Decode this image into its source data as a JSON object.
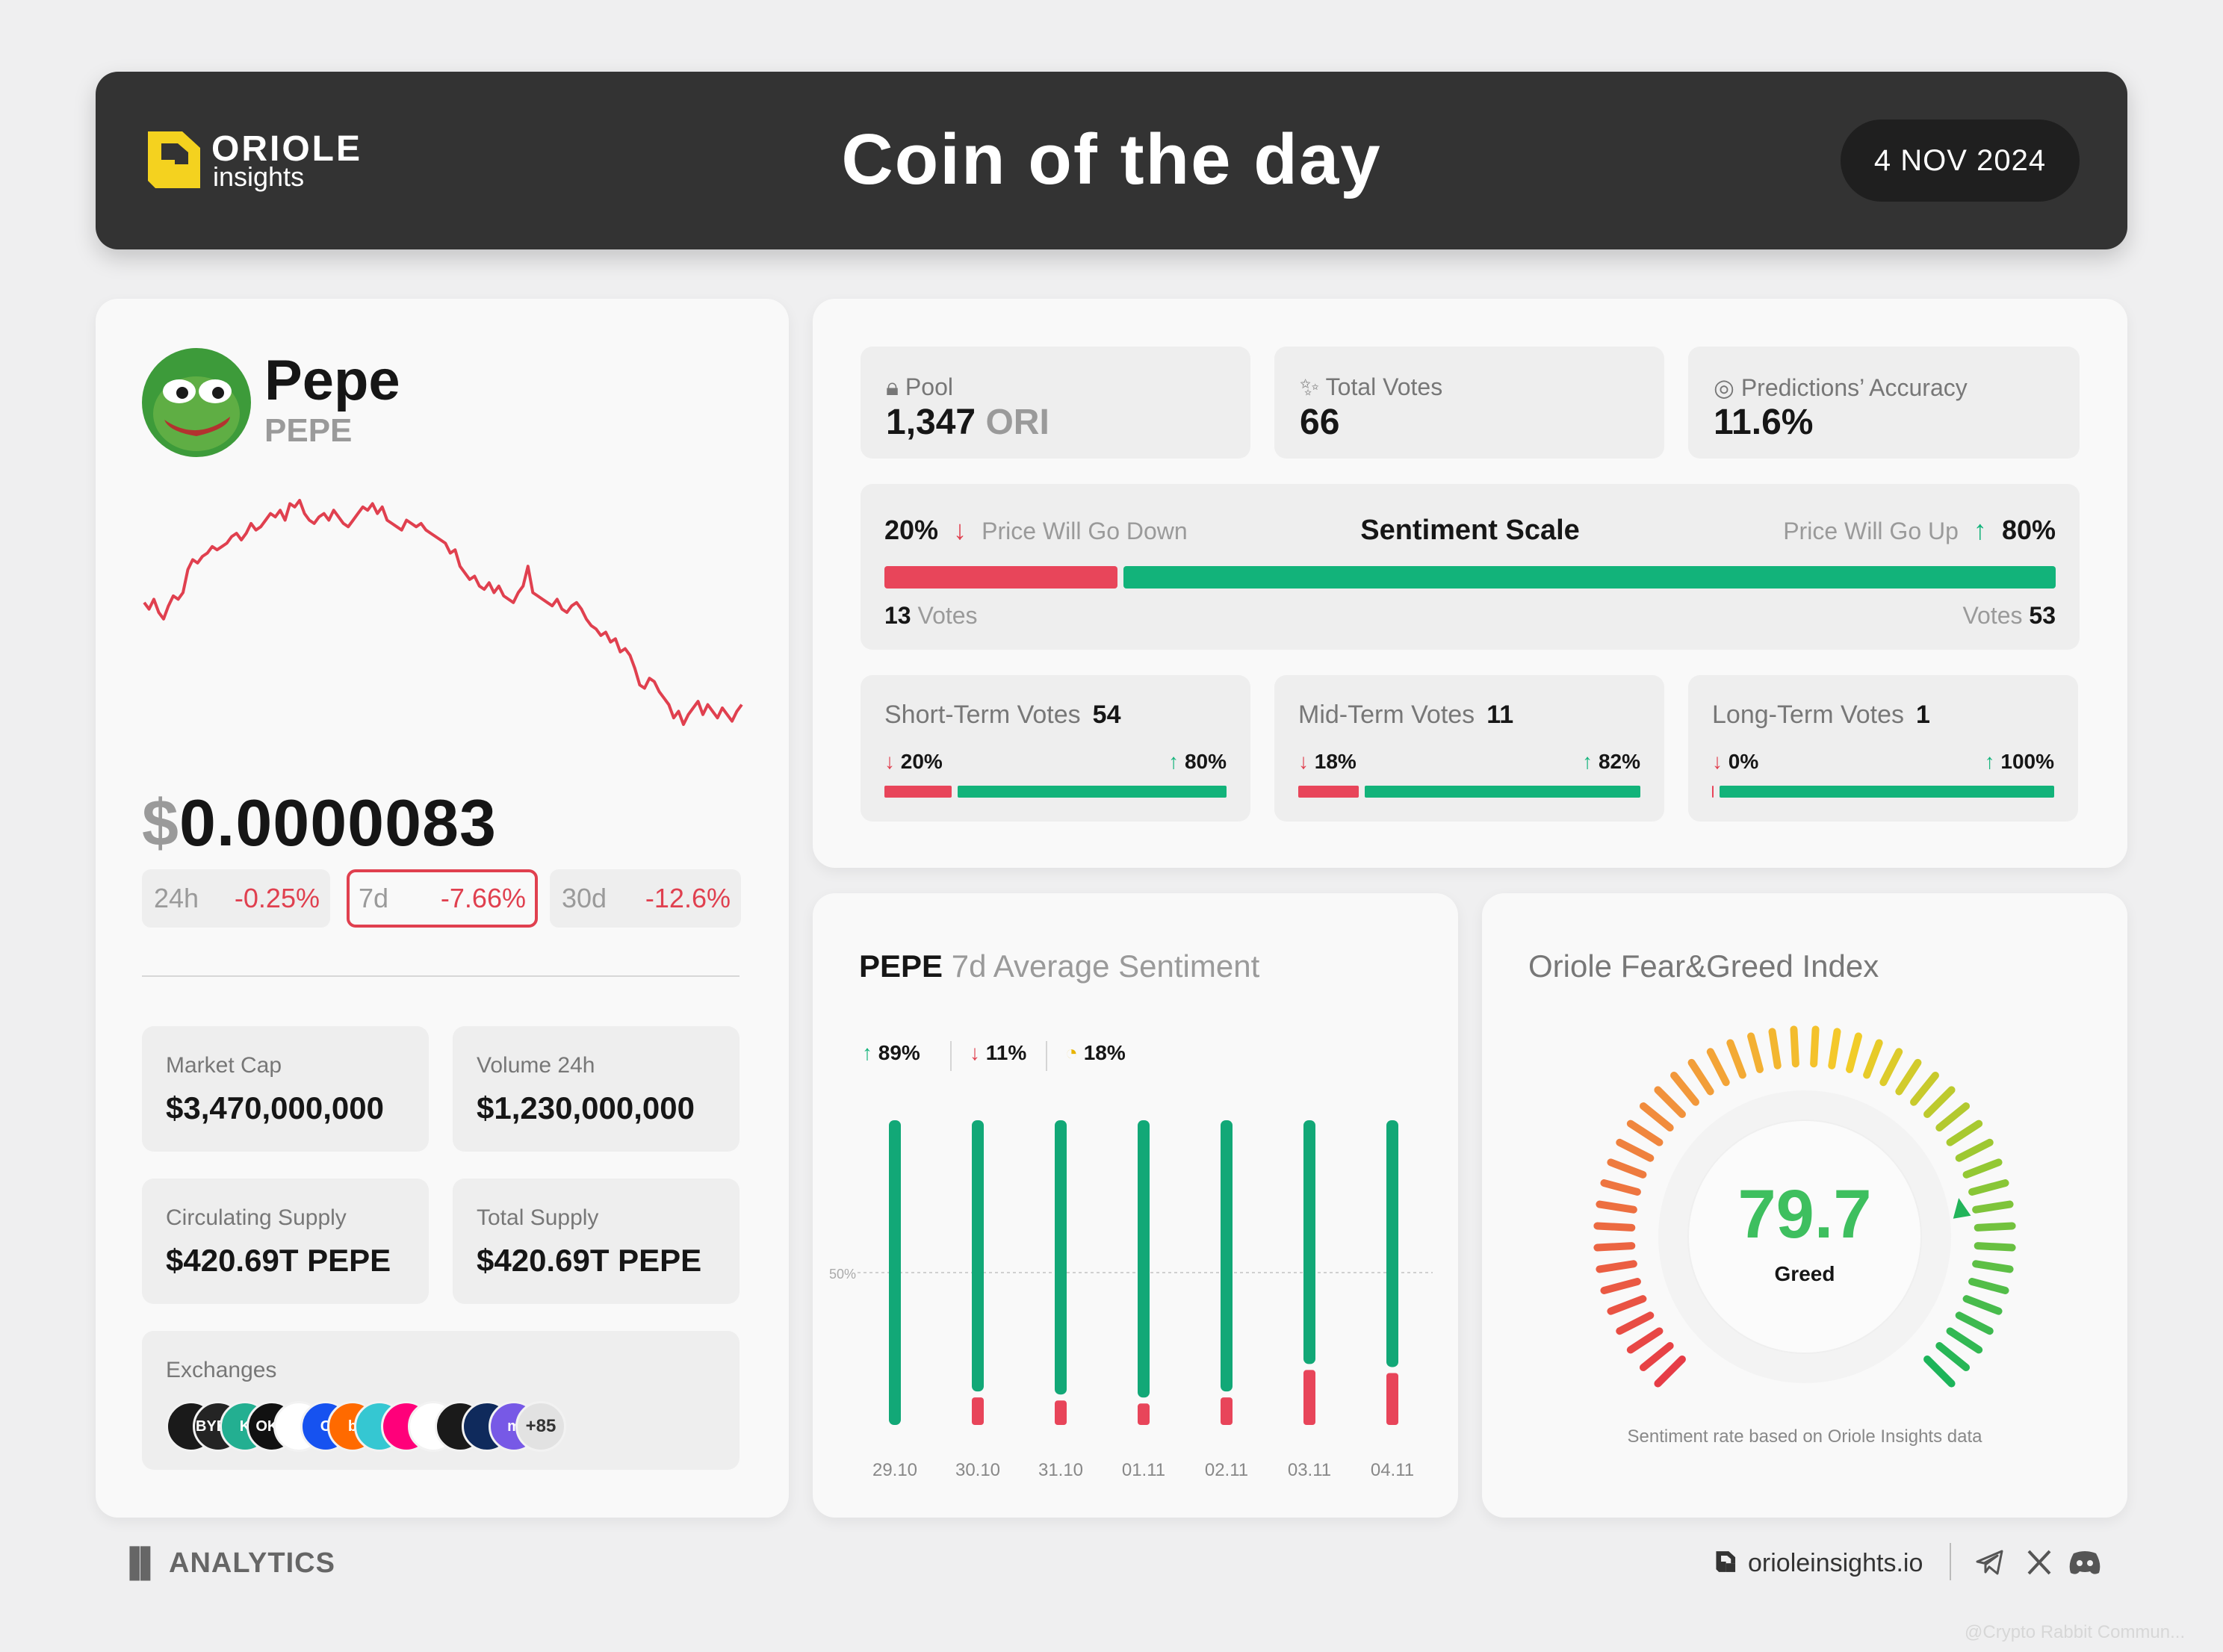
{
  "header": {
    "logo_name": "ORIOLE",
    "logo_sub": "insights",
    "title": "Coin of the day",
    "date": "4 NOV 2024"
  },
  "coin": {
    "name": "Pepe",
    "symbol": "PEPE",
    "price_currency": "$",
    "price_value": "0.0000083",
    "changes": [
      {
        "period": "24h",
        "value": "-0.25%",
        "active": false
      },
      {
        "period": "7d",
        "value": "-7.66%",
        "active": true
      },
      {
        "period": "30d",
        "value": "-12.6%",
        "active": false
      }
    ],
    "stats": {
      "market_cap_label": "Market Cap",
      "market_cap": "$3,470,000,000",
      "volume_label": "Volume 24h",
      "volume": "$1,230,000,000",
      "circ_label": "Circulating Supply",
      "circ": "$420.69T PEPE",
      "total_label": "Total Supply",
      "total": "$420.69T PEPE"
    },
    "exchanges_label": "Exchanges",
    "exchanges": [
      {
        "name": "Binance",
        "text": "",
        "color": "#1a1a1a"
      },
      {
        "name": "Bybit",
        "text": "BYBIT",
        "color": "#242424"
      },
      {
        "name": "KuCoin",
        "text": "K",
        "color": "#23af91"
      },
      {
        "name": "OKX",
        "text": "OKX",
        "color": "#111111"
      },
      {
        "name": "Upbit",
        "text": "",
        "color": "#ffffff"
      },
      {
        "name": "Coinbase",
        "text": "C",
        "color": "#1652f0"
      },
      {
        "name": "Bitget",
        "text": "b",
        "color": "#ff6a00"
      },
      {
        "name": "PancakeSwap",
        "text": "",
        "color": "#35c7d2"
      },
      {
        "name": "Uniswap",
        "text": "",
        "color": "#ff007a"
      },
      {
        "name": "Bitrue",
        "text": "",
        "color": "#ffffff"
      },
      {
        "name": "Bitstamp",
        "text": "",
        "color": "#1a1a1a"
      },
      {
        "name": "Crypto.com",
        "text": "",
        "color": "#0f2a5c"
      },
      {
        "name": "Mexc",
        "text": "m",
        "color": "#7759e6"
      }
    ],
    "exchanges_more": "+85",
    "chart_data": {
      "type": "line",
      "title": "",
      "period": "7d",
      "color": "#e0404f",
      "values": [
        55,
        53,
        56,
        52,
        50,
        54,
        57,
        56,
        58,
        65,
        68,
        67,
        69,
        70,
        72,
        71,
        72,
        73,
        75,
        76,
        74,
        76,
        79,
        77,
        78,
        80,
        82,
        81,
        83,
        80,
        85,
        84,
        86,
        82,
        80,
        79,
        81,
        82,
        80,
        83,
        81,
        79,
        78,
        80,
        82,
        84,
        83,
        85,
        82,
        84,
        80,
        79,
        78,
        77,
        80,
        79,
        78,
        79,
        77,
        76,
        75,
        74,
        73,
        70,
        71,
        66,
        64,
        62,
        63,
        60,
        59,
        61,
        58,
        60,
        57,
        56,
        55,
        58,
        60,
        66,
        58,
        57,
        56,
        55,
        54,
        56,
        53,
        52,
        54,
        55,
        53,
        50,
        48,
        47,
        45,
        46,
        43,
        44,
        40,
        41,
        39,
        35,
        30,
        29,
        32,
        31,
        28,
        26,
        24,
        20,
        22,
        18,
        21,
        23,
        25,
        21,
        24,
        22,
        20,
        23,
        21,
        19,
        22,
        24
      ]
    }
  },
  "stats_top": {
    "pool_label": "Pool",
    "pool_value": "1,347",
    "pool_unit": "ORI",
    "votes_label": "Total Votes",
    "votes_value": "66",
    "accuracy_label": "Predictions’ Accuracy",
    "accuracy_value": "11.6%"
  },
  "sentiment": {
    "title": "Sentiment Scale",
    "down_pct": "20%",
    "down_label": "Price Will Go Down",
    "up_pct": "80%",
    "up_label": "Price Will Go Up",
    "down_votes": "13",
    "up_votes": "53",
    "votes_word": "Votes",
    "down_fraction": 0.2,
    "colors": {
      "down": "#e8455a",
      "up": "#12b37a"
    }
  },
  "terms": [
    {
      "label": "Short-Term Votes",
      "count": "54",
      "down": "20%",
      "up": "80%",
      "down_fraction": 0.2
    },
    {
      "label": "Mid-Term Votes",
      "count": "11",
      "down": "18%",
      "up": "82%",
      "down_fraction": 0.18
    },
    {
      "label": "Long-Term Votes",
      "count": "1",
      "down": "0%",
      "up": "100%",
      "down_fraction": 0.0
    }
  ],
  "weekly": {
    "title_coin": "PEPE",
    "title_rest": "7d Average Sentiment",
    "legend_up": "89%",
    "legend_down": "11%",
    "legend_acc": "18%",
    "chart_data": {
      "type": "bar",
      "title": "",
      "categories": [
        "29.10",
        "30.10",
        "31.10",
        "01.11",
        "02.11",
        "03.11",
        "04.11"
      ],
      "series": [
        {
          "values": [
            100,
            89,
            90,
            91,
            89,
            80,
            81
          ]
        },
        {
          "values": [
            0,
            11,
            10,
            9,
            11,
            20,
            19
          ]
        }
      ],
      "ylim": [
        0,
        100
      ],
      "midline_label": "50%"
    }
  },
  "fear_greed": {
    "title": "Oriole Fear&Greed Index",
    "value": "79.7",
    "label": "Greed",
    "footnote": "Sentiment rate based on Oriole Insights data",
    "gauge_value": 79.7
  },
  "footer": {
    "section": "ANALYTICS",
    "site": "orioleinsights.io",
    "watermark": "@Crypto Rabbit Commun..."
  }
}
